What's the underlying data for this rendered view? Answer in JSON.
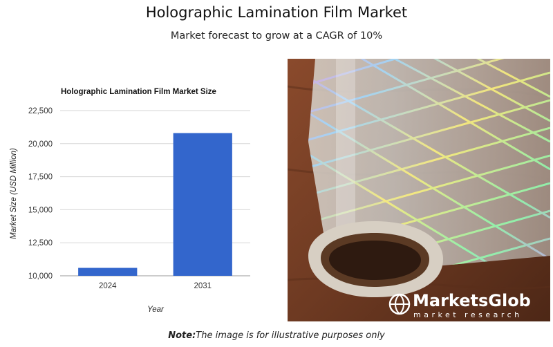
{
  "header": {
    "title": "Holographic Lamination Film Market",
    "subtitle": "Market forecast to grow at a CAGR of 10%"
  },
  "chart_data": {
    "type": "bar",
    "title": "Holographic Lamination Film Market Size",
    "categories": [
      "2024",
      "2031"
    ],
    "values": [
      10600,
      20800
    ],
    "xlabel": "Year",
    "ylabel": "Market Size (USD Million)",
    "ylim": [
      10000,
      22500
    ],
    "yticks": [
      "10,000",
      "12,500",
      "15,000",
      "17,500",
      "20,000",
      "22,500"
    ],
    "ytick_values": [
      10000,
      12500,
      15000,
      17500,
      20000,
      22500
    ],
    "bar_color": "#3366cc",
    "grid": true,
    "legend": "none"
  },
  "image": {
    "logo_name": "MarketsGlob",
    "logo_tagline": "market research",
    "logo_icon": "globe-icon"
  },
  "footer": {
    "note_label": "Note:",
    "note_text": "The image is for illustrative purposes only"
  }
}
